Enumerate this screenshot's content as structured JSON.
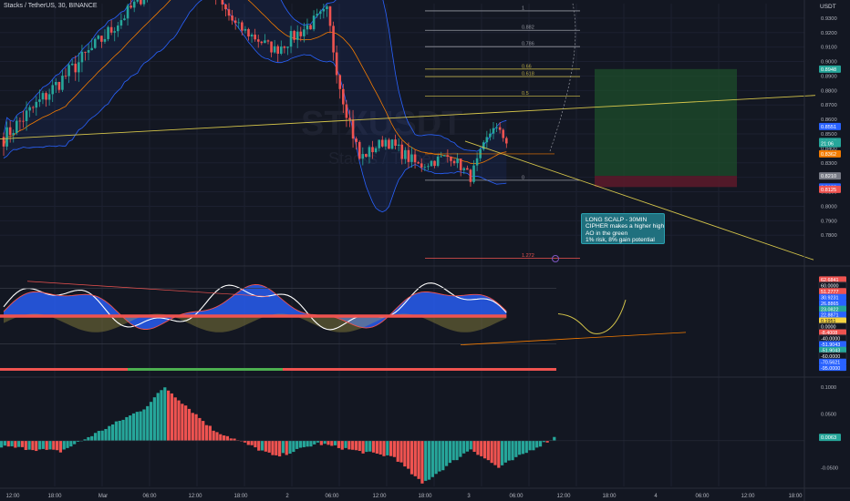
{
  "header": {
    "symbol": "Stacks / TetherUS, 30, BINANCE",
    "currency": "USDT",
    "watermark_ticker": "STXUSDT",
    "watermark_name": "Stacks / TetherUS"
  },
  "annotation": {
    "lines": [
      "LONG SCALP - 30MIN",
      "CIPHER makes a higher high",
      "AO in the green",
      "1% risk, 8% gain potential"
    ]
  },
  "colors": {
    "background": "#131722",
    "up": "#26a69a",
    "down": "#ef5350",
    "bollinger": "#2962ff",
    "trendline": "#d4c44a",
    "target_zone": "#1e4d2b",
    "stop_zone": "#5a1a2a"
  },
  "price_axis": {
    "ticks": [
      "0.9300",
      "0.9200",
      "0.9100",
      "0.9000",
      "0.8900",
      "0.8800",
      "0.8700",
      "0.8600",
      "0.8500",
      "0.8400",
      "0.8300",
      "0.8200",
      "0.8100",
      "0.8000",
      "0.7900",
      "0.7800"
    ],
    "badges": [
      {
        "label": "0.8948",
        "color": "#26a69a",
        "value": 0.8948
      },
      {
        "label": "0.8551",
        "color": "#2962ff",
        "value": 0.8551
      },
      {
        "label": "0.8447",
        "color": "#26a69a",
        "value": 0.8447
      },
      {
        "label": "21:06",
        "color": "#26a69a",
        "value": 0.8433
      },
      {
        "label": "0.8362",
        "color": "#f57c00",
        "value": 0.8362
      },
      {
        "label": "0.8210",
        "color": "#787b86",
        "value": 0.821
      },
      {
        "label": "0.8133",
        "color": "#2962ff",
        "value": 0.8133
      },
      {
        "label": "0.8125",
        "color": "#ef5350",
        "value": 0.8117
      }
    ]
  },
  "fib_levels": [
    {
      "ratio": "1",
      "price": 0.935
    },
    {
      "ratio": "0.882",
      "price": 0.9216
    },
    {
      "ratio": "0.786",
      "price": 0.9103
    },
    {
      "ratio": "0.66",
      "price": 0.8948
    },
    {
      "ratio": "0.618",
      "price": 0.8896
    },
    {
      "ratio": "0.5",
      "price": 0.8762
    },
    {
      "ratio": "0",
      "price": 0.818
    },
    {
      "ratio": "1.272",
      "price": 0.764
    }
  ],
  "osc_axis": {
    "badges": [
      {
        "label": "62.6841",
        "color": "#ef5350"
      },
      {
        "label": "60.0000",
        "color": "#131722"
      },
      {
        "label": "51.2777",
        "color": "#ef5350"
      },
      {
        "label": "30.9231",
        "color": "#2962ff"
      },
      {
        "label": "26.8865",
        "color": "#2962ff"
      },
      {
        "label": "23.0822",
        "color": "#26a69a"
      },
      {
        "label": "22.8871",
        "color": "#2962ff"
      },
      {
        "label": "0.1951",
        "color": "#f5d442"
      },
      {
        "label": "0.0000",
        "color": "#131722"
      },
      {
        "label": "-8.4008",
        "color": "#ef5350"
      },
      {
        "label": "-40.0000",
        "color": "#131722"
      },
      {
        "label": "-51.9043",
        "color": "#2962ff"
      },
      {
        "label": "-51.9043",
        "color": "#26a69a"
      },
      {
        "label": "-60.0000",
        "color": "#131722"
      },
      {
        "label": "-70.5621",
        "color": "#2962ff"
      },
      {
        "label": "-95.0000",
        "color": "#2962ff"
      }
    ]
  },
  "ao_axis": {
    "ticks": [
      "0.1000",
      "0.0500",
      "-0.0500"
    ],
    "badge": {
      "label": "0.0063",
      "color": "#26a69a"
    }
  },
  "time_axis": [
    "12:00",
    "18:00",
    "Mar",
    "06:00",
    "12:00",
    "18:00",
    "2",
    "06:00",
    "12:00",
    "18:00",
    "3",
    "06:00",
    "12:00",
    "18:00",
    "4",
    "06:00",
    "12:00",
    "18:00"
  ],
  "chart_data": {
    "type": "candlestick",
    "price_range": [
      0.76,
      0.94
    ],
    "y_axis": "right",
    "x_labels": [
      "12:00",
      "18:00",
      "Mar",
      "06:00",
      "12:00",
      "18:00",
      "2",
      "06:00",
      "12:00",
      "18:00",
      "3",
      "06:00",
      "12:00",
      "18:00",
      "4",
      "06:00",
      "12:00",
      "18:00"
    ],
    "segments": [
      {
        "from": 0.845,
        "to": 0.922,
        "bars": 34,
        "vol": 0.012
      },
      {
        "from": 0.922,
        "to": 0.966,
        "bars": 18,
        "vol": 0.01
      },
      {
        "from": 0.966,
        "to": 0.958,
        "bars": 10,
        "vol": 0.012
      },
      {
        "from": 0.958,
        "to": 0.925,
        "bars": 10,
        "vol": 0.009
      },
      {
        "from": 0.925,
        "to": 0.908,
        "bars": 12,
        "vol": 0.008
      },
      {
        "from": 0.908,
        "to": 0.934,
        "bars": 16,
        "vol": 0.01
      },
      {
        "from": 0.934,
        "to": 0.884,
        "bars": 4,
        "vol": 0.012
      },
      {
        "from": 0.884,
        "to": 0.833,
        "bars": 6,
        "vol": 0.012
      },
      {
        "from": 0.833,
        "to": 0.846,
        "bars": 8,
        "vol": 0.008
      },
      {
        "from": 0.846,
        "to": 0.828,
        "bars": 10,
        "vol": 0.009
      },
      {
        "from": 0.828,
        "to": 0.835,
        "bars": 10,
        "vol": 0.008
      },
      {
        "from": 0.835,
        "to": 0.82,
        "bars": 6,
        "vol": 0.007
      },
      {
        "from": 0.82,
        "to": 0.856,
        "bars": 7,
        "vol": 0.008
      },
      {
        "from": 0.856,
        "to": 0.845,
        "bars": 4,
        "vol": 0.006
      }
    ],
    "trade_setup": {
      "entry": 0.821,
      "target": 0.8948,
      "stop": 0.8133
    },
    "ao_histogram": {
      "segments": [
        {
          "from": -0.01,
          "to": -0.02,
          "bars": 18
        },
        {
          "from": -0.02,
          "to": 0.06,
          "bars": 24
        },
        {
          "from": 0.06,
          "to": 0.1,
          "bars": 6
        },
        {
          "from": 0.1,
          "to": 0.02,
          "bars": 14
        },
        {
          "from": 0.02,
          "to": -0.03,
          "bars": 18
        },
        {
          "from": -0.03,
          "to": -0.005,
          "bars": 12
        },
        {
          "from": -0.005,
          "to": -0.02,
          "bars": 12
        },
        {
          "from": -0.02,
          "to": -0.03,
          "bars": 10
        },
        {
          "from": -0.03,
          "to": -0.08,
          "bars": 8
        },
        {
          "from": -0.08,
          "to": -0.015,
          "bars": 14
        },
        {
          "from": -0.015,
          "to": -0.05,
          "bars": 8
        },
        {
          "from": -0.05,
          "to": 0.006,
          "bars": 16
        }
      ],
      "range": [
        -0.085,
        0.115
      ]
    }
  }
}
